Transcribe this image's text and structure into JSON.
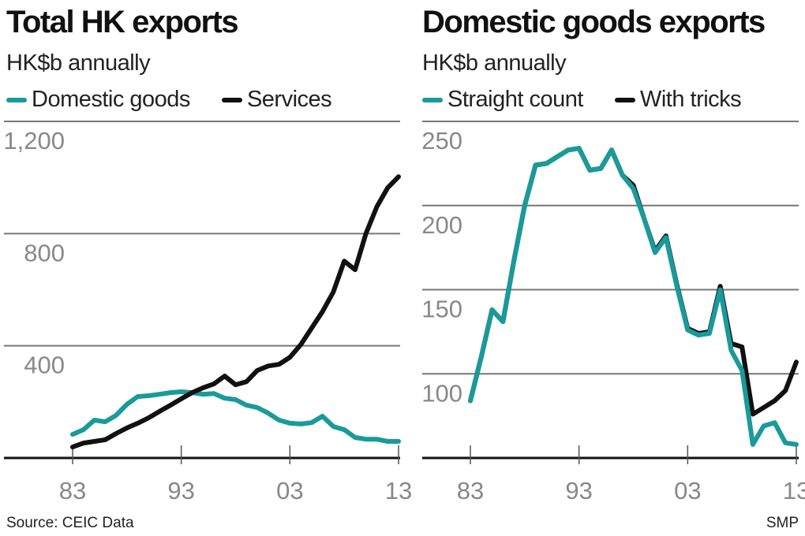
{
  "footer": {
    "source": "Source: CEIC Data",
    "credit": "SMP"
  },
  "colors": {
    "teal": "#1a9a9a",
    "black": "#111111",
    "grid": "#777777",
    "tick_label": "#888888"
  },
  "chart_data": [
    {
      "type": "line",
      "title": "Total HK exports",
      "subtitle": "HK$b annually",
      "ylim": [
        0,
        1200
      ],
      "yticks": [
        400,
        800,
        1200
      ],
      "ytick_labels": [
        "400",
        "800",
        "1,200"
      ],
      "xlim": [
        1983,
        2013
      ],
      "xticks": [
        1983,
        1993,
        2003,
        2013
      ],
      "xtick_labels": [
        "83",
        "93",
        "03",
        "13"
      ],
      "grid": true,
      "legend": "top",
      "x": [
        1983,
        1984,
        1985,
        1986,
        1987,
        1988,
        1989,
        1990,
        1991,
        1992,
        1993,
        1994,
        1995,
        1996,
        1997,
        1998,
        1999,
        2000,
        2001,
        2002,
        2003,
        2004,
        2005,
        2006,
        2007,
        2008,
        2009,
        2010,
        2011,
        2012,
        2013
      ],
      "series": [
        {
          "name": "Domestic goods",
          "color": "#1a9a9a",
          "values": [
            84,
            101,
            135,
            129,
            152,
            191,
            219,
            222,
            227,
            233,
            236,
            233,
            227,
            230,
            213,
            208,
            188,
            180,
            160,
            135,
            124,
            121,
            126,
            149,
            112,
            101,
            73,
            67,
            67,
            59,
            59
          ]
        },
        {
          "name": "Services",
          "color": "#111111",
          "values": [
            39,
            53,
            59,
            65,
            87,
            107,
            124,
            143,
            166,
            188,
            211,
            233,
            250,
            264,
            292,
            261,
            272,
            312,
            328,
            334,
            359,
            404,
            463,
            522,
            592,
            702,
            671,
            800,
            896,
            963,
            1003
          ]
        }
      ]
    },
    {
      "type": "line",
      "title": "Domestic goods exports",
      "subtitle": "HK$b annually",
      "ylim": [
        50,
        250
      ],
      "yticks": [
        100,
        150,
        200,
        250
      ],
      "ytick_labels": [
        "100",
        "150",
        "200",
        "250"
      ],
      "xlim": [
        1983,
        2013
      ],
      "xticks": [
        1983,
        1993,
        2003,
        2013
      ],
      "xtick_labels": [
        "83",
        "93",
        "03",
        "13"
      ],
      "grid": true,
      "legend": "top",
      "x": [
        1983,
        1984,
        1985,
        1986,
        1987,
        1988,
        1989,
        1990,
        1991,
        1992,
        1993,
        1994,
        1995,
        1996,
        1997,
        1998,
        1999,
        2000,
        2001,
        2002,
        2003,
        2004,
        2005,
        2006,
        2007,
        2008,
        2009,
        2010,
        2011,
        2012,
        2013
      ],
      "series": [
        {
          "name": "With tricks",
          "color": "#111111",
          "values": [
            84,
            110,
            138,
            131,
            167,
            200,
            224,
            225,
            229,
            233,
            234,
            221,
            222,
            233,
            218,
            212,
            192,
            173,
            182,
            153,
            127,
            124,
            125,
            152,
            118,
            116,
            76,
            80,
            84,
            90,
            107
          ]
        },
        {
          "name": "Straight count",
          "color": "#1a9a9a",
          "values": [
            84,
            110,
            138,
            131,
            167,
            200,
            224,
            225,
            229,
            233,
            234,
            221,
            222,
            233,
            218,
            210,
            192,
            172,
            181,
            152,
            126,
            123,
            124,
            150,
            114,
            102,
            58,
            69,
            71,
            59,
            58
          ]
        }
      ]
    }
  ]
}
